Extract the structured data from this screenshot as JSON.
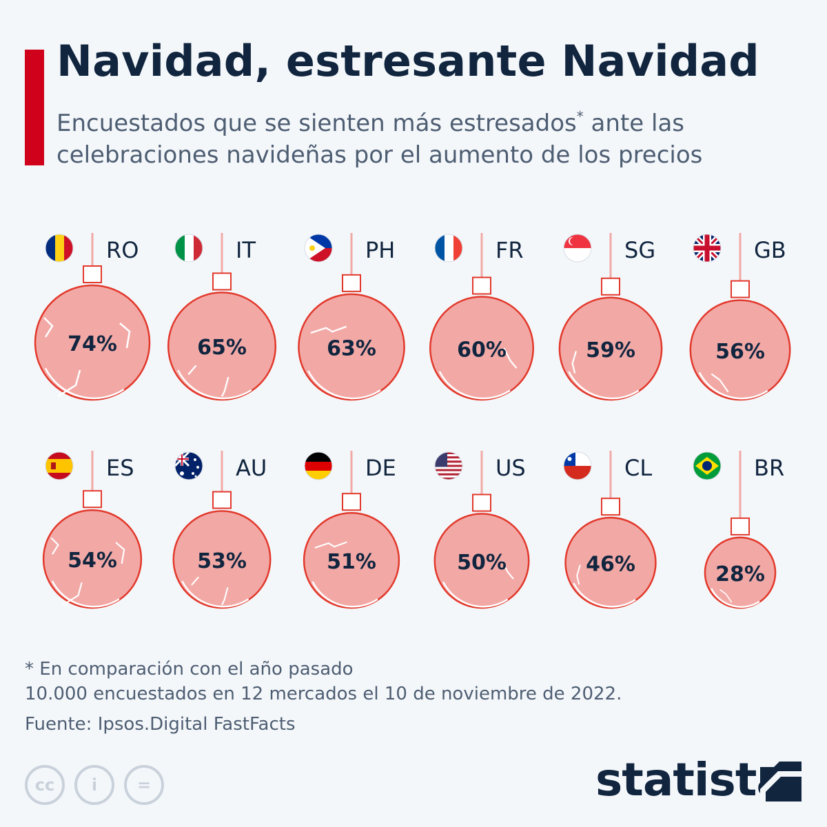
{
  "header": {
    "title": "Navidad, estresante Navidad",
    "subtitle_part1": "Encuestados que se sienten más estresados",
    "subtitle_sup": "*",
    "subtitle_part2": " ante las celebraciones navideñas por el aumento de los precios"
  },
  "chart_data": {
    "type": "bubble",
    "unit": "%",
    "categories": [
      "RO",
      "IT",
      "PH",
      "FR",
      "SG",
      "GB",
      "ES",
      "AU",
      "DE",
      "US",
      "CL",
      "BR"
    ],
    "values": [
      74,
      65,
      63,
      60,
      59,
      56,
      54,
      53,
      51,
      50,
      46,
      28
    ],
    "series": [
      {
        "values": [
          74,
          65,
          63,
          60,
          59,
          56,
          54,
          53,
          51,
          50,
          46,
          28
        ]
      }
    ],
    "flags": [
      "romania-flag",
      "italy-flag",
      "philippines-flag",
      "france-flag",
      "singapore-flag",
      "uk-flag",
      "spain-flag",
      "australia-flag",
      "germany-flag",
      "usa-flag",
      "chile-flag",
      "brazil-flag"
    ],
    "colors": {
      "ornament_fill": "#f2a9a6",
      "ornament_stroke": "#e2382b",
      "string": "#f1a9a6",
      "text": "#11253f"
    }
  },
  "footer": {
    "note": "* En comparación con el año pasado",
    "sample": "10.000 encuestados en 12 mercados el 10 de noviembre de 2022.",
    "source": "Fuente: Ipsos.Digital FastFacts",
    "license_icons": [
      "creative-commons-icon",
      "attribution-icon",
      "no-derivatives-icon"
    ],
    "license_glyphs": [
      "cc",
      "i",
      "="
    ],
    "brand": "statista"
  }
}
